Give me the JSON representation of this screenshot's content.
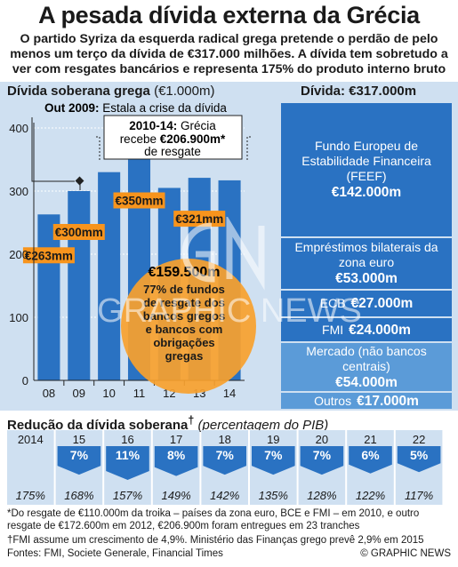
{
  "header": {
    "title": "A pesada dívida externa da Grécia",
    "subtitle": "O partido Syriza da esquerda radical grega pretende o perdão de pelo menos um terço da dívida de €317.000 milhões. A dívida tem sobretudo a ver com resgates bancários e representa 175% do produto interno bruto"
  },
  "chart_data": [
    {
      "type": "bar",
      "title": "Dívida soberana grega",
      "unit": "(€1.000m)",
      "categories": [
        "08",
        "09",
        "10",
        "11",
        "12",
        "13",
        "14"
      ],
      "values": [
        263,
        300,
        330,
        350,
        305,
        321,
        317
      ],
      "ylim": [
        0,
        400
      ],
      "yticks": [
        0,
        100,
        200,
        300,
        400
      ],
      "grid": true,
      "bar_labels": [
        {
          "index": 0,
          "text": "€263mm"
        },
        {
          "index": 1,
          "text": "€300mm"
        },
        {
          "index": 3,
          "text": "€350mm"
        },
        {
          "index": 5,
          "text": "€321mm"
        }
      ],
      "annotations": {
        "out2009_bold": "Out 2009:",
        "out2009_text": "Estala a crise da dívida",
        "rescue_bold": "2010-14:",
        "rescue_line1": "Grécia",
        "rescue_line2a": "recebe",
        "rescue_amount": "€206.900m*",
        "rescue_line3": "de resgate",
        "circle_amount": "€159.500m",
        "circle_text": [
          "77% de fundos",
          "de resgate dos",
          "bancos gregos",
          "e bancos com",
          "obrigações",
          "gregas"
        ]
      }
    },
    {
      "type": "stacked-bar",
      "title": "Dívida:",
      "total": "€317.000m",
      "segments": [
        {
          "name": "Fundo Europeu de Estabilidade Financeira (FEEF)",
          "label": "€142.000m",
          "value": 142000
        },
        {
          "name": "Empréstimos bilaterais da zona euro",
          "label": "€53.000m",
          "value": 53000
        },
        {
          "name": "ECB",
          "label": "€27.000m",
          "value": 27000
        },
        {
          "name": "FMI",
          "label": "€24.000m",
          "value": 24000
        },
        {
          "name": "Mercado (não bancos centrais)",
          "label": "€54.000m",
          "value": 54000
        },
        {
          "name": "Outros",
          "label": "€17.000m",
          "value": 17000
        }
      ]
    },
    {
      "type": "table",
      "title": "Redução da dívida soberana",
      "title_mark": "†",
      "subtitle": "(percentagem do PIB)",
      "years": [
        "2014",
        "15",
        "16",
        "17",
        "18",
        "19",
        "20",
        "21",
        "22"
      ],
      "reductions": [
        "",
        "7%",
        "11%",
        "8%",
        "7%",
        "7%",
        "7%",
        "6%",
        "5%"
      ],
      "debt_pct": [
        "175%",
        "168%",
        "157%",
        "149%",
        "142%",
        "135%",
        "128%",
        "122%",
        "117%"
      ]
    }
  ],
  "footnotes": {
    "note1": "*Do resgate de €110.000m da troika – países da zona euro, BCE e FMI – em 2010, e outro resgate de €172.600m em 2012, €206.900m foram entregues em 23 tranches",
    "note2": "†FMI assume um crescimento de 4,9%. Ministério das Finanças grego prevê 2,9% em 2015",
    "source": "Fontes: FMI, Societe Generale, Financial Times",
    "credit": "© GRAPHIC NEWS"
  },
  "watermark": "GRAPHIC NEWS",
  "colors": {
    "bar": "#2a72c2",
    "bar_light": "#5b9bd8",
    "panel": "#cfe0f1",
    "label_orange": "#f7941d",
    "circle_orange": "#f9a12e"
  }
}
